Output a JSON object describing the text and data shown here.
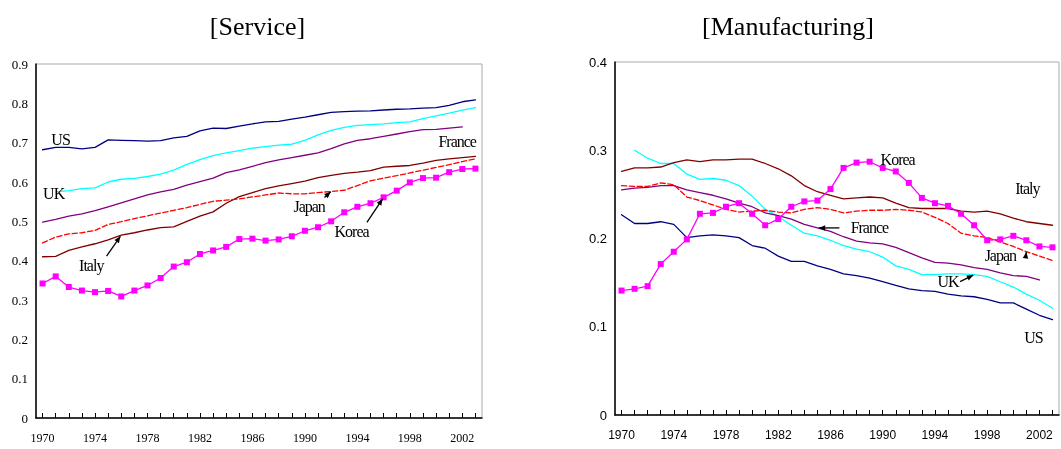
{
  "chart_data": [
    {
      "type": "line",
      "title": "[Service]",
      "marker": "none",
      "grid": false,
      "categories": [
        "1970",
        null,
        null,
        null,
        "1974",
        null,
        null,
        null,
        "1978",
        null,
        null,
        null,
        "1982",
        null,
        null,
        null,
        "1986",
        null,
        null,
        null,
        "1990",
        null,
        null,
        null,
        "1994",
        null,
        null,
        null,
        "1998",
        null,
        null,
        null,
        "2002",
        null
      ],
      "ylim": [
        0,
        0.9
      ],
      "yticks": [
        0,
        0.1,
        0.2,
        0.3,
        0.4,
        0.5,
        0.6,
        0.7,
        0.8,
        0.9
      ],
      "series": [
        {
          "name": "US",
          "color": "#000080",
          "values": [
            0.682,
            0.688,
            0.688,
            0.684,
            0.688,
            0.707,
            0.706,
            0.705,
            0.704,
            0.705,
            0.712,
            0.716,
            0.73,
            0.737,
            0.736,
            0.742,
            0.748,
            0.753,
            0.754,
            0.76,
            0.765,
            0.771,
            0.777,
            0.779,
            0.78,
            0.781,
            0.783,
            0.785,
            0.786,
            0.788,
            0.789,
            0.795,
            0.804,
            0.809
          ]
        },
        {
          "name": "UK",
          "color": "#00ffff",
          "values": [
            null,
            0.575,
            0.578,
            0.583,
            0.585,
            0.6,
            0.607,
            0.609,
            0.614,
            0.62,
            0.63,
            0.645,
            0.657,
            0.667,
            0.674,
            0.68,
            0.686,
            0.69,
            0.694,
            0.696,
            0.706,
            0.72,
            0.731,
            0.739,
            0.744,
            0.746,
            0.748,
            0.751,
            0.753,
            0.761,
            0.768,
            0.775,
            0.783,
            0.789
          ]
        },
        {
          "name": "France",
          "color": "#800080",
          "values": [
            0.498,
            0.505,
            0.513,
            0.519,
            0.527,
            0.537,
            0.547,
            0.557,
            0.567,
            0.575,
            0.581,
            0.592,
            0.601,
            0.61,
            0.624,
            0.631,
            0.64,
            0.649,
            0.656,
            0.662,
            0.668,
            0.674,
            0.685,
            0.697,
            0.706,
            0.71,
            0.716,
            0.722,
            0.728,
            0.733,
            0.734,
            0.737,
            0.74,
            null
          ]
        },
        {
          "name": "Italy",
          "color": "#800000",
          "values": [
            0.41,
            0.411,
            0.426,
            0.435,
            0.443,
            0.453,
            0.465,
            0.471,
            0.478,
            0.484,
            0.486,
            0.5,
            0.513,
            0.524,
            0.546,
            0.563,
            0.573,
            0.583,
            0.59,
            0.596,
            0.602,
            0.611,
            0.617,
            0.622,
            0.625,
            0.629,
            0.638,
            0.64,
            0.642,
            0.648,
            0.655,
            0.659,
            0.662,
            0.665
          ]
        },
        {
          "name": "Japan",
          "color": "#ff0000",
          "line_style": "dashed",
          "values": [
            0.445,
            0.46,
            0.468,
            0.471,
            0.477,
            0.492,
            0.499,
            0.507,
            0.514,
            0.521,
            0.528,
            0.535,
            0.543,
            0.551,
            0.554,
            0.557,
            0.562,
            0.567,
            0.572,
            0.57,
            0.57,
            0.573,
            0.576,
            0.579,
            0.591,
            0.603,
            0.61,
            0.616,
            0.623,
            0.63,
            0.637,
            0.644,
            0.652,
            0.659
          ]
        },
        {
          "name": "Korea",
          "color": "#ff00ff",
          "marker": "square",
          "values": [
            0.342,
            0.36,
            0.333,
            0.324,
            0.32,
            0.323,
            0.309,
            0.324,
            0.337,
            0.356,
            0.385,
            0.396,
            0.417,
            0.426,
            0.435,
            0.455,
            0.456,
            0.451,
            0.454,
            0.462,
            0.476,
            0.485,
            0.5,
            0.523,
            0.537,
            0.546,
            0.561,
            0.578,
            0.599,
            0.61,
            0.611,
            0.625,
            0.633,
            0.634
          ]
        }
      ]
    },
    {
      "type": "line",
      "title": "[Manufacturing]",
      "marker": "none",
      "grid": false,
      "categories": [
        "1970",
        null,
        null,
        null,
        "1974",
        null,
        null,
        null,
        "1978",
        null,
        null,
        null,
        "1982",
        null,
        null,
        null,
        "1986",
        null,
        null,
        null,
        "1990",
        null,
        null,
        null,
        "1994",
        null,
        null,
        null,
        "1998",
        null,
        null,
        null,
        "2002",
        null
      ],
      "ylim": [
        0,
        0.4
      ],
      "yticks": [
        0,
        0.1,
        0.2,
        0.3,
        0.4
      ],
      "series": [
        {
          "name": "US",
          "color": "#000080",
          "values": [
            0.227,
            0.217,
            0.217,
            0.219,
            0.216,
            0.201,
            0.203,
            0.204,
            0.203,
            0.201,
            0.192,
            0.189,
            0.18,
            0.174,
            0.174,
            0.169,
            0.165,
            0.16,
            0.158,
            0.155,
            0.151,
            0.147,
            0.143,
            0.141,
            0.14,
            0.137,
            0.135,
            0.134,
            0.131,
            0.127,
            0.127,
            0.12,
            0.113,
            0.108
          ]
        },
        {
          "name": "UK",
          "color": "#00ffff",
          "values": [
            null,
            0.3,
            0.291,
            0.285,
            0.285,
            0.273,
            0.267,
            0.268,
            0.266,
            0.26,
            0.248,
            0.233,
            0.225,
            0.215,
            0.206,
            0.203,
            0.198,
            0.192,
            0.188,
            0.185,
            0.179,
            0.169,
            0.165,
            0.159,
            0.159,
            0.16,
            0.16,
            0.159,
            0.157,
            0.151,
            0.145,
            0.137,
            0.13,
            0.121
          ]
        },
        {
          "name": "France",
          "color": "#800080",
          "values": [
            0.255,
            0.257,
            0.258,
            0.26,
            0.26,
            0.255,
            0.252,
            0.249,
            0.245,
            0.24,
            0.236,
            0.229,
            0.226,
            0.222,
            0.216,
            0.212,
            0.208,
            0.202,
            0.197,
            0.195,
            0.194,
            0.19,
            0.184,
            0.178,
            0.173,
            0.172,
            0.17,
            0.167,
            0.165,
            0.161,
            0.158,
            0.157,
            0.153,
            null
          ]
        },
        {
          "name": "Italy",
          "color": "#800000",
          "values": [
            0.276,
            0.28,
            0.28,
            0.281,
            0.286,
            0.289,
            0.287,
            0.289,
            0.289,
            0.29,
            0.29,
            0.285,
            0.279,
            0.271,
            0.26,
            0.253,
            0.249,
            0.245,
            0.246,
            0.247,
            0.246,
            0.24,
            0.235,
            0.234,
            0.234,
            0.234,
            0.231,
            0.23,
            0.231,
            0.228,
            0.223,
            0.219,
            0.217,
            0.215
          ]
        },
        {
          "name": "Japan",
          "color": "#ff0000",
          "line_style": "dashed",
          "values": [
            0.26,
            0.259,
            0.259,
            0.263,
            0.261,
            0.247,
            0.243,
            0.238,
            0.233,
            0.23,
            0.231,
            0.232,
            0.23,
            0.229,
            0.233,
            0.235,
            0.233,
            0.229,
            0.231,
            0.232,
            0.232,
            0.233,
            0.232,
            0.23,
            0.224,
            0.217,
            0.206,
            0.203,
            0.201,
            0.196,
            0.191,
            0.185,
            0.18,
            0.175
          ]
        },
        {
          "name": "Korea",
          "color": "#ff00ff",
          "marker": "square",
          "values": [
            0.141,
            0.143,
            0.146,
            0.171,
            0.185,
            0.199,
            0.228,
            0.229,
            0.236,
            0.24,
            0.228,
            0.215,
            0.222,
            0.236,
            0.242,
            0.243,
            0.256,
            0.28,
            0.286,
            0.287,
            0.28,
            0.276,
            0.263,
            0.246,
            0.24,
            0.237,
            0.228,
            0.215,
            0.198,
            0.199,
            0.203,
            0.198,
            0.191,
            0.19
          ]
        }
      ]
    }
  ]
}
